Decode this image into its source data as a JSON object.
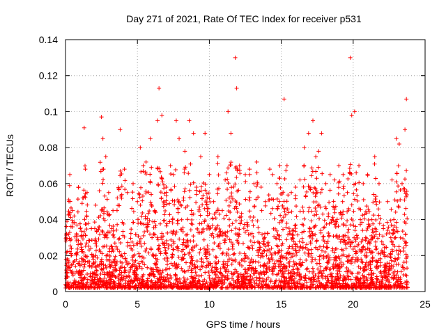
{
  "chart_data": {
    "type": "scatter",
    "title": "Day 271 of 2021, Rate Of TEC Index for receiver p531",
    "xlabel": "GPS time / hours",
    "ylabel": "ROTI / TECUs",
    "xlim": [
      0,
      25
    ],
    "ylim": [
      0,
      0.14
    ],
    "xticks": [
      "0",
      "5",
      "10",
      "15",
      "20",
      "25"
    ],
    "yticks": [
      "0",
      "0.02",
      "0.04",
      "0.06",
      "0.08",
      "0.1",
      "0.12",
      "0.14"
    ],
    "grid": true,
    "marker": "+",
    "color": "#ff0000",
    "series": [
      {
        "x": [
          0.1,
          0.3,
          0.5,
          0.6,
          0.9,
          1.2,
          1.3,
          1.5,
          1.8,
          2.1,
          2.5,
          2.6,
          2.8,
          3.0,
          3.3,
          3.6,
          3.8,
          4.1,
          4.3,
          4.7,
          5.0,
          5.2,
          5.4,
          5.6,
          5.9,
          6.2,
          6.4,
          6.5,
          6.7,
          7.0,
          7.3,
          7.5,
          7.7,
          7.9,
          8.3,
          8.6,
          8.9,
          9.1,
          9.4,
          9.7,
          10.0,
          10.3,
          10.6,
          10.9,
          11.1,
          11.3,
          11.5,
          11.8,
          11.9,
          12.1,
          12.5,
          12.8,
          13.1,
          13.3,
          13.6,
          13.9,
          14.2,
          14.4,
          14.7,
          14.9,
          15.2,
          15.4,
          15.7,
          16.0,
          16.3,
          16.6,
          16.9,
          17.2,
          17.4,
          17.6,
          17.8,
          18.1,
          18.4,
          18.7,
          19.0,
          19.3,
          19.6,
          19.8,
          19.9,
          20.1,
          20.4,
          20.7,
          21.0,
          21.3,
          21.5,
          21.8,
          22.1,
          22.4,
          22.7,
          23.0,
          23.2,
          23.4,
          23.6,
          23.7
        ],
        "y": [
          0.039,
          0.065,
          0.045,
          0.042,
          0.058,
          0.052,
          0.091,
          0.055,
          0.035,
          0.048,
          0.097,
          0.085,
          0.075,
          0.055,
          0.045,
          0.052,
          0.09,
          0.068,
          0.055,
          0.06,
          0.05,
          0.08,
          0.07,
          0.072,
          0.085,
          0.045,
          0.095,
          0.113,
          0.098,
          0.058,
          0.07,
          0.065,
          0.095,
          0.085,
          0.078,
          0.095,
          0.088,
          0.058,
          0.075,
          0.088,
          0.065,
          0.05,
          0.075,
          0.045,
          0.062,
          0.1,
          0.088,
          0.13,
          0.113,
          0.07,
          0.065,
          0.068,
          0.06,
          0.072,
          0.058,
          0.05,
          0.068,
          0.065,
          0.06,
          0.07,
          0.107,
          0.07,
          0.055,
          0.058,
          0.062,
          0.08,
          0.088,
          0.095,
          0.075,
          0.078,
          0.088,
          0.06,
          0.065,
          0.062,
          0.07,
          0.065,
          0.055,
          0.13,
          0.098,
          0.1,
          0.07,
          0.06,
          0.065,
          0.04,
          0.075,
          0.06,
          0.035,
          0.05,
          0.062,
          0.085,
          0.082,
          0.06,
          0.09,
          0.107
        ]
      }
    ]
  }
}
